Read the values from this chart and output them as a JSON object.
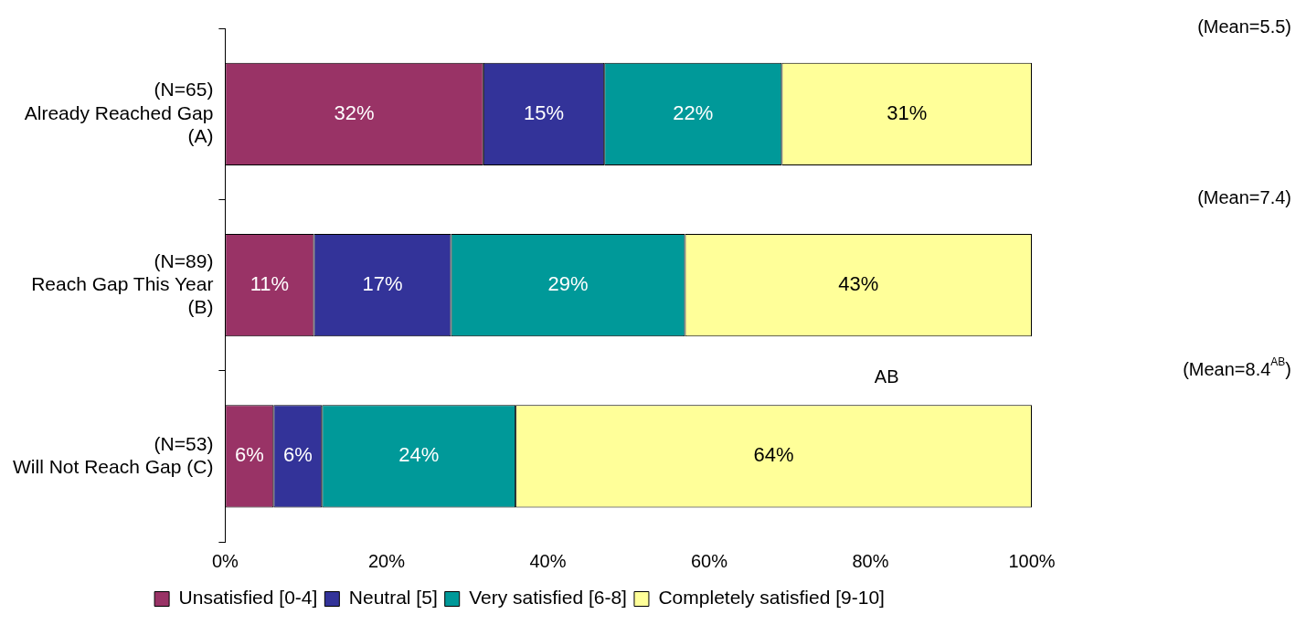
{
  "chart_data": {
    "type": "bar",
    "orientation": "horizontal",
    "stacked": true,
    "categories": [
      "(N=65)\nAlready Reached Gap\n(A)",
      "(N=89)\nReach Gap This Year\n(B)",
      "(N=53)\nWill Not Reach Gap (C)"
    ],
    "series": [
      {
        "name": "Unsatisfied [0-4]",
        "color": "#993366",
        "values": [
          32,
          11,
          6
        ],
        "value_labels": [
          "32%",
          "11%",
          "6%"
        ]
      },
      {
        "name": "Neutral [5]",
        "color": "#333399",
        "values": [
          15,
          17,
          6
        ],
        "value_labels": [
          "15%",
          "17%",
          "6%"
        ]
      },
      {
        "name": "Very satisfied [6-8]",
        "color": "#009999",
        "values": [
          22,
          29,
          24
        ],
        "value_labels": [
          "22%",
          "29%",
          "24%"
        ]
      },
      {
        "name": "Completely satisfied [9-10]",
        "color": "#ffff99",
        "values": [
          31,
          43,
          64
        ],
        "value_labels": [
          "31%",
          "43%",
          "64%"
        ]
      }
    ],
    "xlim": [
      0,
      100
    ],
    "xticks": [
      {
        "value": 0,
        "label": "0%"
      },
      {
        "value": 20,
        "label": "20%"
      },
      {
        "value": 40,
        "label": "40%"
      },
      {
        "value": 60,
        "label": "60%"
      },
      {
        "value": 80,
        "label": "80%"
      },
      {
        "value": 100,
        "label": "100%"
      }
    ],
    "legend": "bottom",
    "grid": false,
    "annotations": [
      "(Mean=5.5)",
      "(Mean=7.4)",
      "(Mean=8.4$^{AB}$)",
      "AB"
    ]
  }
}
